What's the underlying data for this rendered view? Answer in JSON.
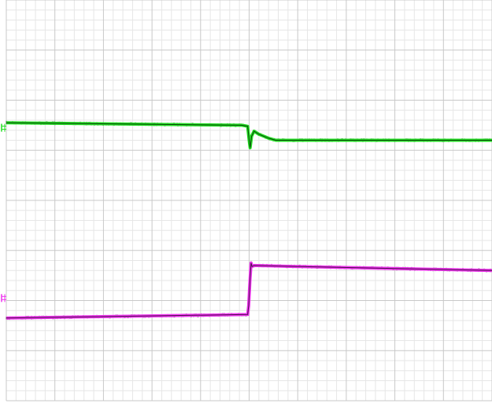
{
  "chart_data": {
    "type": "line",
    "title": "",
    "xlabel": "",
    "ylabel": "",
    "grid": true,
    "grid_divisions": {
      "x": 10,
      "y": 8
    },
    "minor_divisions": 5,
    "x_range": [
      0,
      10
    ],
    "y_range": [
      -4,
      4
    ],
    "series": [
      {
        "color": "#22dd22",
        "noise_color": "#000000",
        "marker_glyph": "ground-level-marker",
        "channel_ref_level": 1.45,
        "x": [
          0.0,
          4.85,
          4.97,
          5.0,
          5.02,
          5.05,
          5.1,
          5.2,
          5.4,
          5.55,
          6.0,
          8.0,
          10.0
        ],
        "values": [
          1.55,
          1.5,
          1.48,
          1.2,
          1.05,
          1.28,
          1.38,
          1.32,
          1.24,
          1.2,
          1.2,
          1.2,
          1.2
        ]
      },
      {
        "color": "#ee33ee",
        "noise_color": "#000000",
        "marker_glyph": "ground-level-marker",
        "channel_ref_level": -1.95,
        "x": [
          0.0,
          4.97,
          4.99,
          5.02,
          5.04,
          5.06,
          5.1,
          6.0,
          10.0
        ],
        "values": [
          -2.35,
          -2.28,
          -2.1,
          -1.55,
          -1.25,
          -1.32,
          -1.3,
          -1.32,
          -1.4
        ]
      }
    ]
  }
}
